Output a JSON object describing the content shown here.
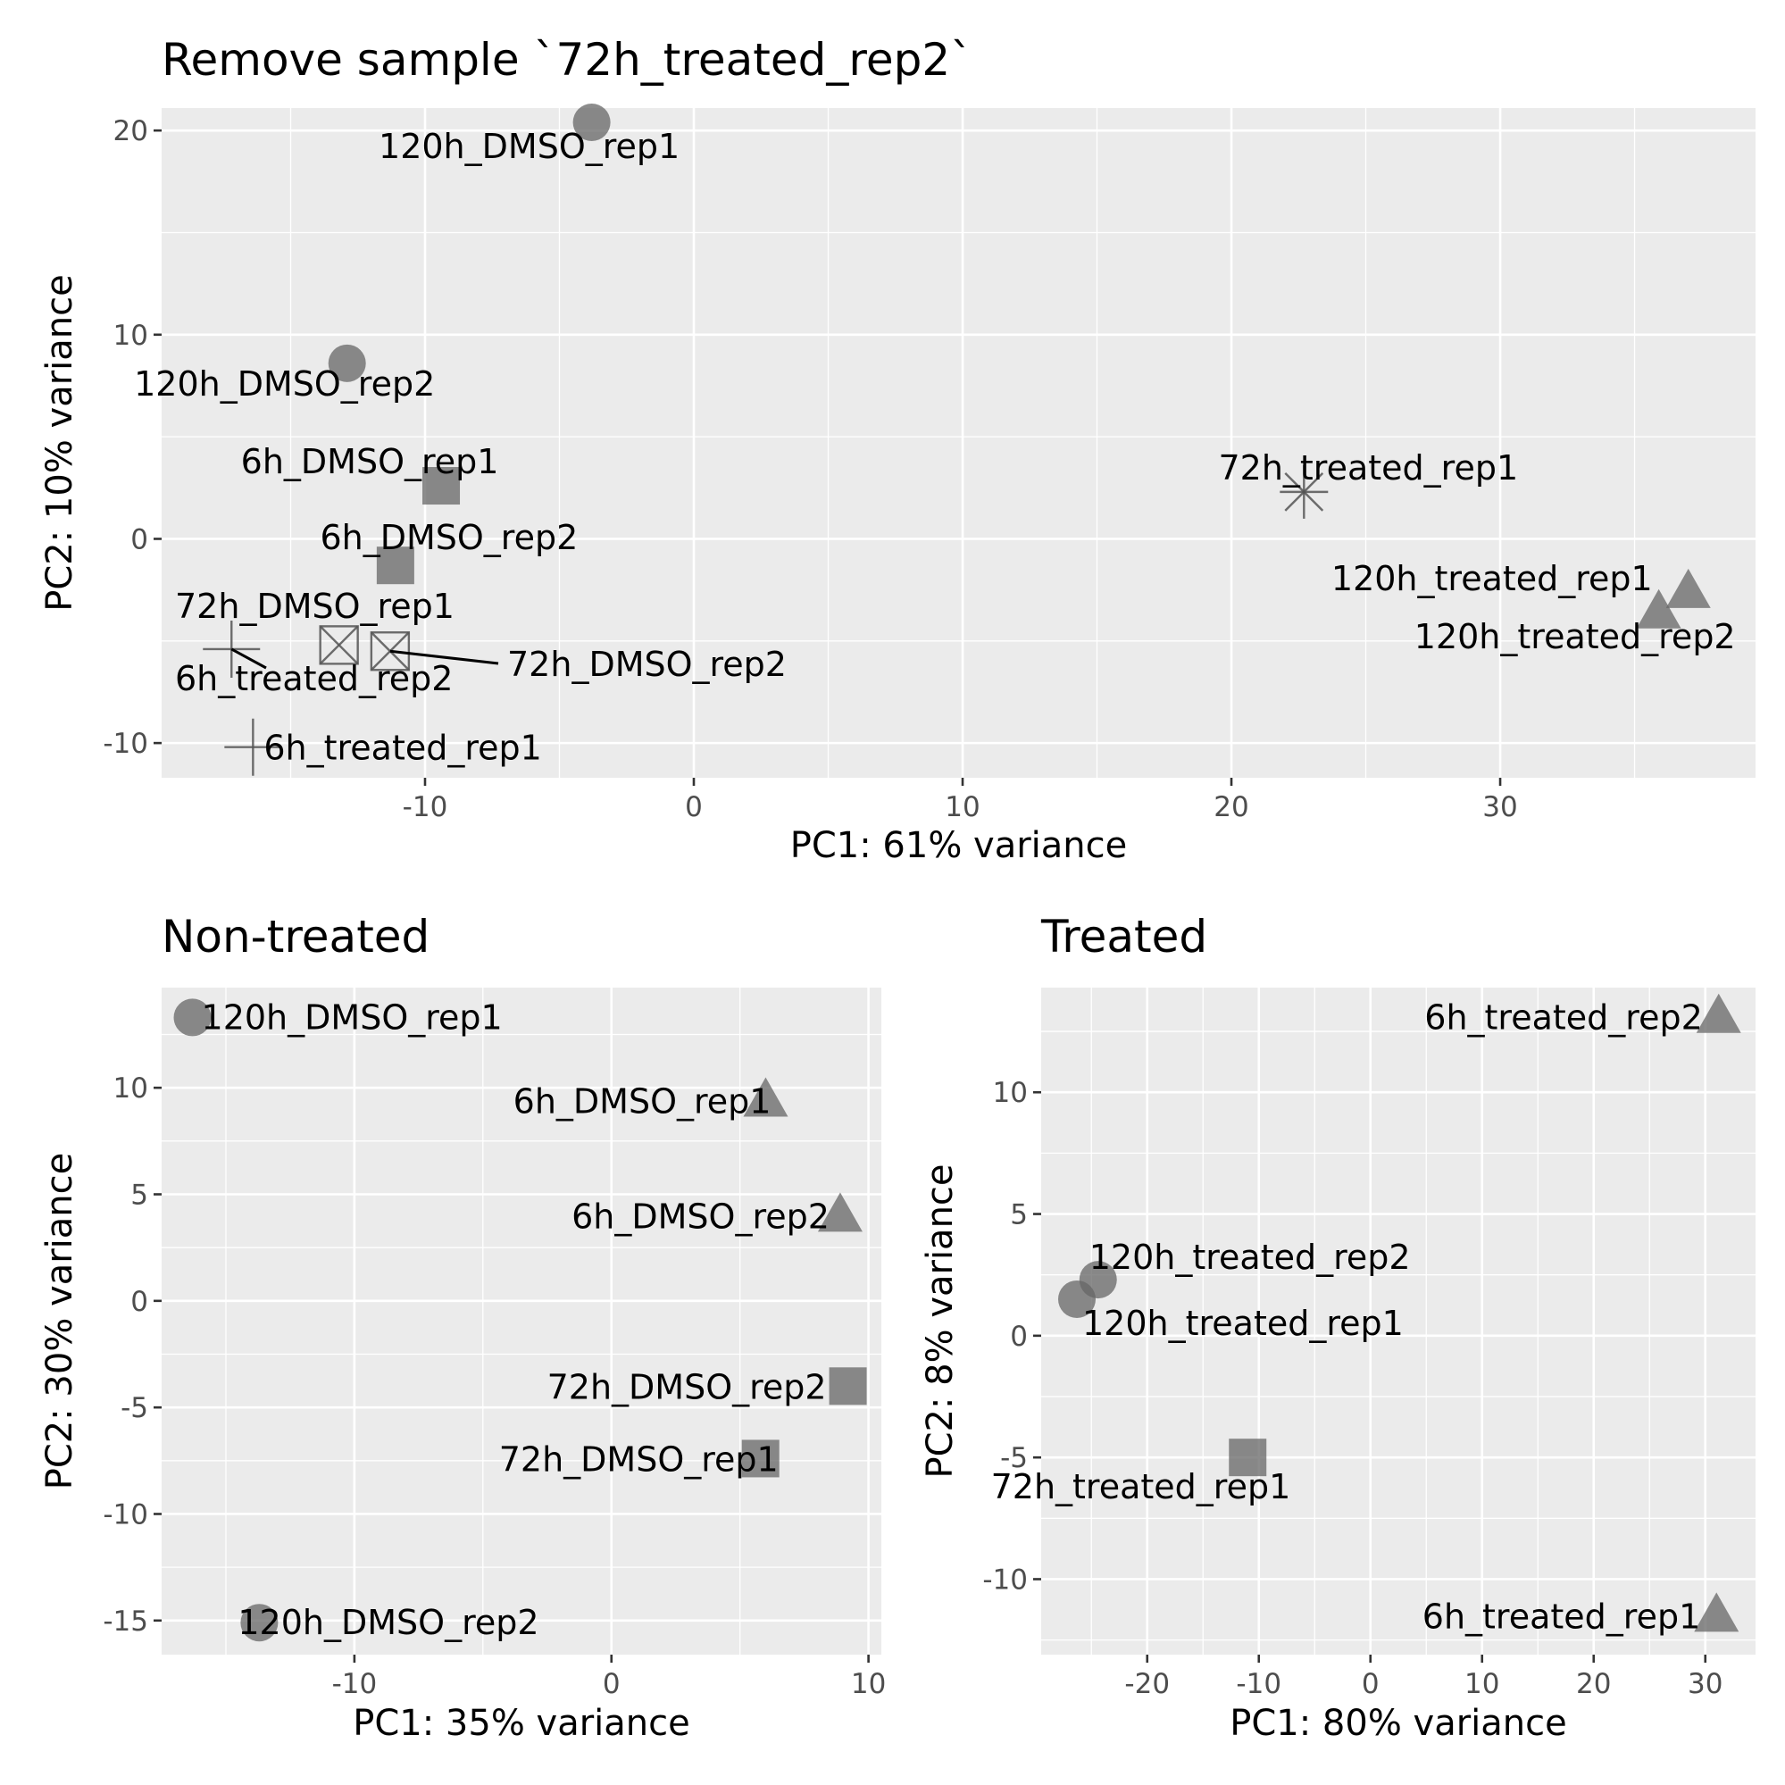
{
  "chart_data": [
    {
      "type": "scatter",
      "title": "Remove sample `72h_treated_rep2`",
      "xlabel": "PC1: 61% variance",
      "ylabel": "PC2: 10% variance",
      "xlim": [
        -19.8,
        39.5
      ],
      "ylim": [
        -11.7,
        21.1
      ],
      "xticks": [
        -10,
        0,
        10,
        20,
        30
      ],
      "yticks": [
        -10,
        0,
        10,
        20
      ],
      "grid": true,
      "points": [
        {
          "label": "120h_DMSO_rep1",
          "x": -3.8,
          "y": 20.4,
          "shape": "circle"
        },
        {
          "label": "120h_DMSO_rep2",
          "x": -12.9,
          "y": 8.6,
          "shape": "circle"
        },
        {
          "label": "6h_DMSO_rep1",
          "x": -9.4,
          "y": 2.6,
          "shape": "square"
        },
        {
          "label": "6h_DMSO_rep2",
          "x": -11.1,
          "y": -1.3,
          "shape": "square"
        },
        {
          "label": "72h_treated_rep1",
          "x": 22.7,
          "y": 2.3,
          "shape": "asterisk"
        },
        {
          "label": "120h_treated_rep1",
          "x": 37.0,
          "y": -2.6,
          "shape": "triangle"
        },
        {
          "label": "120h_treated_rep2",
          "x": 35.9,
          "y": -3.6,
          "shape": "triangle"
        },
        {
          "label": "72h_DMSO_rep1",
          "x": -13.2,
          "y": -5.2,
          "shape": "square-cross"
        },
        {
          "label": "72h_DMSO_rep2",
          "x": -11.3,
          "y": -5.5,
          "shape": "square-cross"
        },
        {
          "label": "6h_treated_rep2",
          "x": -17.2,
          "y": -5.4,
          "shape": "plus"
        },
        {
          "label": "6h_treated_rep1",
          "x": -16.4,
          "y": -10.2,
          "shape": "plus"
        }
      ]
    },
    {
      "type": "scatter",
      "title": "Non-treated",
      "xlabel": "PC1: 35% variance",
      "ylabel": "PC2: 30% variance",
      "xlim": [
        -17.5,
        10.5
      ],
      "ylim": [
        -16.6,
        14.7
      ],
      "xticks": [
        -10,
        0,
        10
      ],
      "yticks": [
        -15,
        -10,
        -5,
        0,
        5,
        10
      ],
      "grid": true,
      "points": [
        {
          "label": "120h_DMSO_rep1",
          "x": -16.3,
          "y": 13.3,
          "shape": "circle"
        },
        {
          "label": "120h_DMSO_rep2",
          "x": -13.7,
          "y": -15.1,
          "shape": "circle"
        },
        {
          "label": "6h_DMSO_rep1",
          "x": 6.0,
          "y": 9.4,
          "shape": "triangle"
        },
        {
          "label": "6h_DMSO_rep2",
          "x": 8.9,
          "y": 4.0,
          "shape": "triangle"
        },
        {
          "label": "72h_DMSO_rep2",
          "x": 9.2,
          "y": -4.0,
          "shape": "square"
        },
        {
          "label": "72h_DMSO_rep1",
          "x": 5.8,
          "y": -7.4,
          "shape": "square"
        }
      ]
    },
    {
      "type": "scatter",
      "title": "Treated",
      "xlabel": "PC1: 80% variance",
      "ylabel": "PC2: 8% variance",
      "xlim": [
        -29.5,
        34.5
      ],
      "ylim": [
        -13.1,
        14.3
      ],
      "xticks": [
        -20,
        -10,
        0,
        10,
        20,
        30
      ],
      "yticks": [
        -10,
        -5,
        0,
        5,
        10
      ],
      "grid": true,
      "points": [
        {
          "label": "6h_treated_rep2",
          "x": 31.2,
          "y": 13.1,
          "shape": "triangle"
        },
        {
          "label": "120h_treated_rep2",
          "x": -24.4,
          "y": 2.3,
          "shape": "circle"
        },
        {
          "label": "120h_treated_rep1",
          "x": -26.3,
          "y": 1.5,
          "shape": "circle"
        },
        {
          "label": "72h_treated_rep1",
          "x": -11.0,
          "y": -5.0,
          "shape": "square"
        },
        {
          "label": "6h_treated_rep1",
          "x": 31.0,
          "y": -11.5,
          "shape": "triangle"
        }
      ]
    }
  ]
}
